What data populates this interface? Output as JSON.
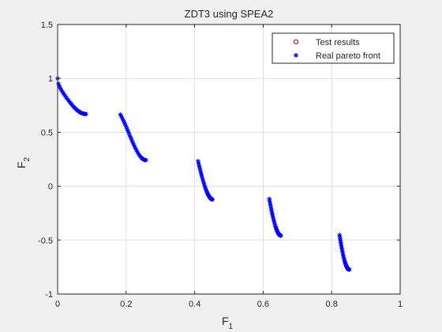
{
  "chart_data": {
    "type": "scatter",
    "title": "ZDT3 using SPEA2",
    "xlabel": {
      "main": "F",
      "sub": "1"
    },
    "ylabel": {
      "main": "F",
      "sub": "2"
    },
    "xlim": [
      0,
      1
    ],
    "ylim": [
      -1,
      1.5
    ],
    "xticks": [
      0,
      0.2,
      0.4,
      0.6,
      0.8,
      1
    ],
    "xtick_labels": [
      "0",
      "0.2",
      "0.4",
      "0.6",
      "0.8",
      "1"
    ],
    "yticks": [
      -1,
      -0.5,
      0,
      0.5,
      1,
      1.5
    ],
    "ytick_labels": [
      "-1",
      "-0.5",
      "0",
      "0.5",
      "1",
      "1.5"
    ],
    "grid": true,
    "legend_position": "top-right",
    "colors": {
      "test": "#cc0000",
      "pareto": "#0000ff",
      "axes": "#262626",
      "grid": "#dfdfdf"
    },
    "series": [
      {
        "name": "Test results",
        "marker": "circle",
        "color": "#cc0000",
        "points": []
      },
      {
        "name": "Real pareto front",
        "marker": "asterisk",
        "color": "#0000ff",
        "segments": [
          {
            "x_min": 0.0,
            "x_max": 0.083
          },
          {
            "x_min": 0.183,
            "x_max": 0.258
          },
          {
            "x_min": 0.41,
            "x_max": 0.452
          },
          {
            "x_min": 0.618,
            "x_max": 0.652
          },
          {
            "x_min": 0.823,
            "x_max": 0.852
          }
        ],
        "points_per_segment": 35
      }
    ]
  }
}
